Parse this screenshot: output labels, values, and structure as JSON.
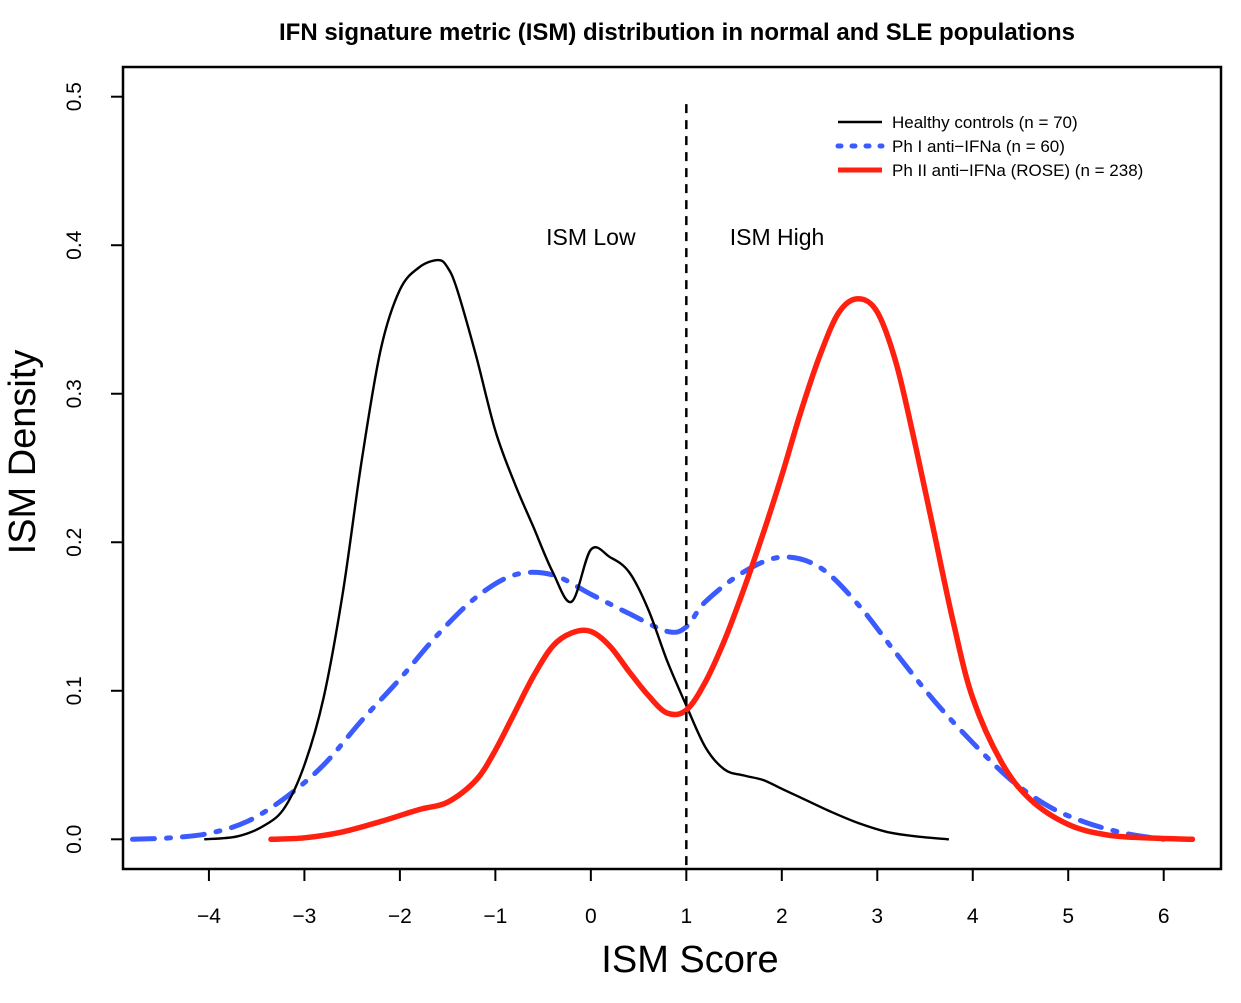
{
  "chart_data": {
    "type": "line",
    "title": "IFN signature metric (ISM) distribution in normal and SLE populations",
    "xlabel": "ISM Score",
    "ylabel": "ISM Density",
    "xlim": [
      -4.9,
      6.6
    ],
    "ylim": [
      -0.02,
      0.52
    ],
    "xticks": [
      -4,
      -3,
      -2,
      -1,
      0,
      1,
      2,
      3,
      4,
      5,
      6
    ],
    "xtick_labels": [
      "−4",
      "−3",
      "−2",
      "−1",
      "0",
      "1",
      "2",
      "3",
      "4",
      "5",
      "6"
    ],
    "yticks": [
      0.0,
      0.1,
      0.2,
      0.3,
      0.4,
      0.5
    ],
    "ytick_labels": [
      "0.0",
      "0.1",
      "0.2",
      "0.3",
      "0.4",
      "0.5"
    ],
    "grid": false,
    "legend_position": "top-right",
    "cutoff": {
      "x": 1,
      "y_top": 0.495,
      "style": "dashed"
    },
    "annotations": [
      {
        "text": "ISM Low",
        "x": 0.0,
        "y": 0.4
      },
      {
        "text": "ISM High",
        "x": 1.95,
        "y": 0.4
      }
    ],
    "series": [
      {
        "name": "Healthy controls (n = 70)",
        "color": "#000000",
        "style": "solid",
        "x": [
          -4.05,
          -3.7,
          -3.4,
          -3.2,
          -3.0,
          -2.8,
          -2.6,
          -2.4,
          -2.2,
          -2.0,
          -1.8,
          -1.6,
          -1.5,
          -1.4,
          -1.2,
          -1.0,
          -0.8,
          -0.6,
          -0.4,
          -0.2,
          0.0,
          0.2,
          0.4,
          0.6,
          0.8,
          1.0,
          1.2,
          1.4,
          1.6,
          1.8,
          2.0,
          2.2,
          2.5,
          2.8,
          3.1,
          3.4,
          3.75
        ],
        "y": [
          0.0,
          0.002,
          0.01,
          0.022,
          0.05,
          0.095,
          0.165,
          0.255,
          0.33,
          0.37,
          0.385,
          0.39,
          0.385,
          0.37,
          0.325,
          0.275,
          0.24,
          0.21,
          0.18,
          0.16,
          0.195,
          0.19,
          0.18,
          0.155,
          0.12,
          0.09,
          0.062,
          0.047,
          0.043,
          0.04,
          0.034,
          0.028,
          0.019,
          0.011,
          0.005,
          0.002,
          0.0
        ]
      },
      {
        "name": "Ph I anti−IFNa (n = 60)",
        "color": "#3b5bff",
        "style": "dashdot",
        "x": [
          -4.8,
          -4.4,
          -4.0,
          -3.6,
          -3.2,
          -2.8,
          -2.4,
          -2.0,
          -1.6,
          -1.2,
          -0.8,
          -0.4,
          0.0,
          0.4,
          0.8,
          1.0,
          1.2,
          1.6,
          2.0,
          2.4,
          2.8,
          3.2,
          3.6,
          4.0,
          4.4,
          4.8,
          5.2,
          5.6,
          6.0
        ],
        "y": [
          0.0,
          0.001,
          0.004,
          0.012,
          0.028,
          0.05,
          0.08,
          0.108,
          0.138,
          0.163,
          0.178,
          0.178,
          0.165,
          0.152,
          0.14,
          0.143,
          0.16,
          0.18,
          0.19,
          0.183,
          0.158,
          0.125,
          0.093,
          0.065,
          0.04,
          0.022,
          0.011,
          0.004,
          0.0
        ]
      },
      {
        "name": "Ph II anti−IFNa (ROSE) (n = 238)",
        "color": "#ff2010",
        "style": "solid",
        "x": [
          -3.35,
          -3.0,
          -2.6,
          -2.2,
          -1.8,
          -1.5,
          -1.2,
          -1.0,
          -0.8,
          -0.6,
          -0.4,
          -0.2,
          0.0,
          0.2,
          0.4,
          0.6,
          0.8,
          1.0,
          1.2,
          1.4,
          1.6,
          1.8,
          2.0,
          2.2,
          2.4,
          2.6,
          2.8,
          3.0,
          3.2,
          3.4,
          3.6,
          3.8,
          4.0,
          4.3,
          4.6,
          5.0,
          5.4,
          5.8,
          6.3
        ],
        "y": [
          0.0,
          0.001,
          0.005,
          0.012,
          0.02,
          0.025,
          0.04,
          0.06,
          0.085,
          0.11,
          0.13,
          0.139,
          0.14,
          0.13,
          0.113,
          0.097,
          0.085,
          0.087,
          0.106,
          0.134,
          0.168,
          0.205,
          0.245,
          0.288,
          0.326,
          0.355,
          0.364,
          0.355,
          0.32,
          0.265,
          0.205,
          0.145,
          0.095,
          0.052,
          0.027,
          0.01,
          0.003,
          0.001,
          0.0
        ]
      }
    ]
  }
}
